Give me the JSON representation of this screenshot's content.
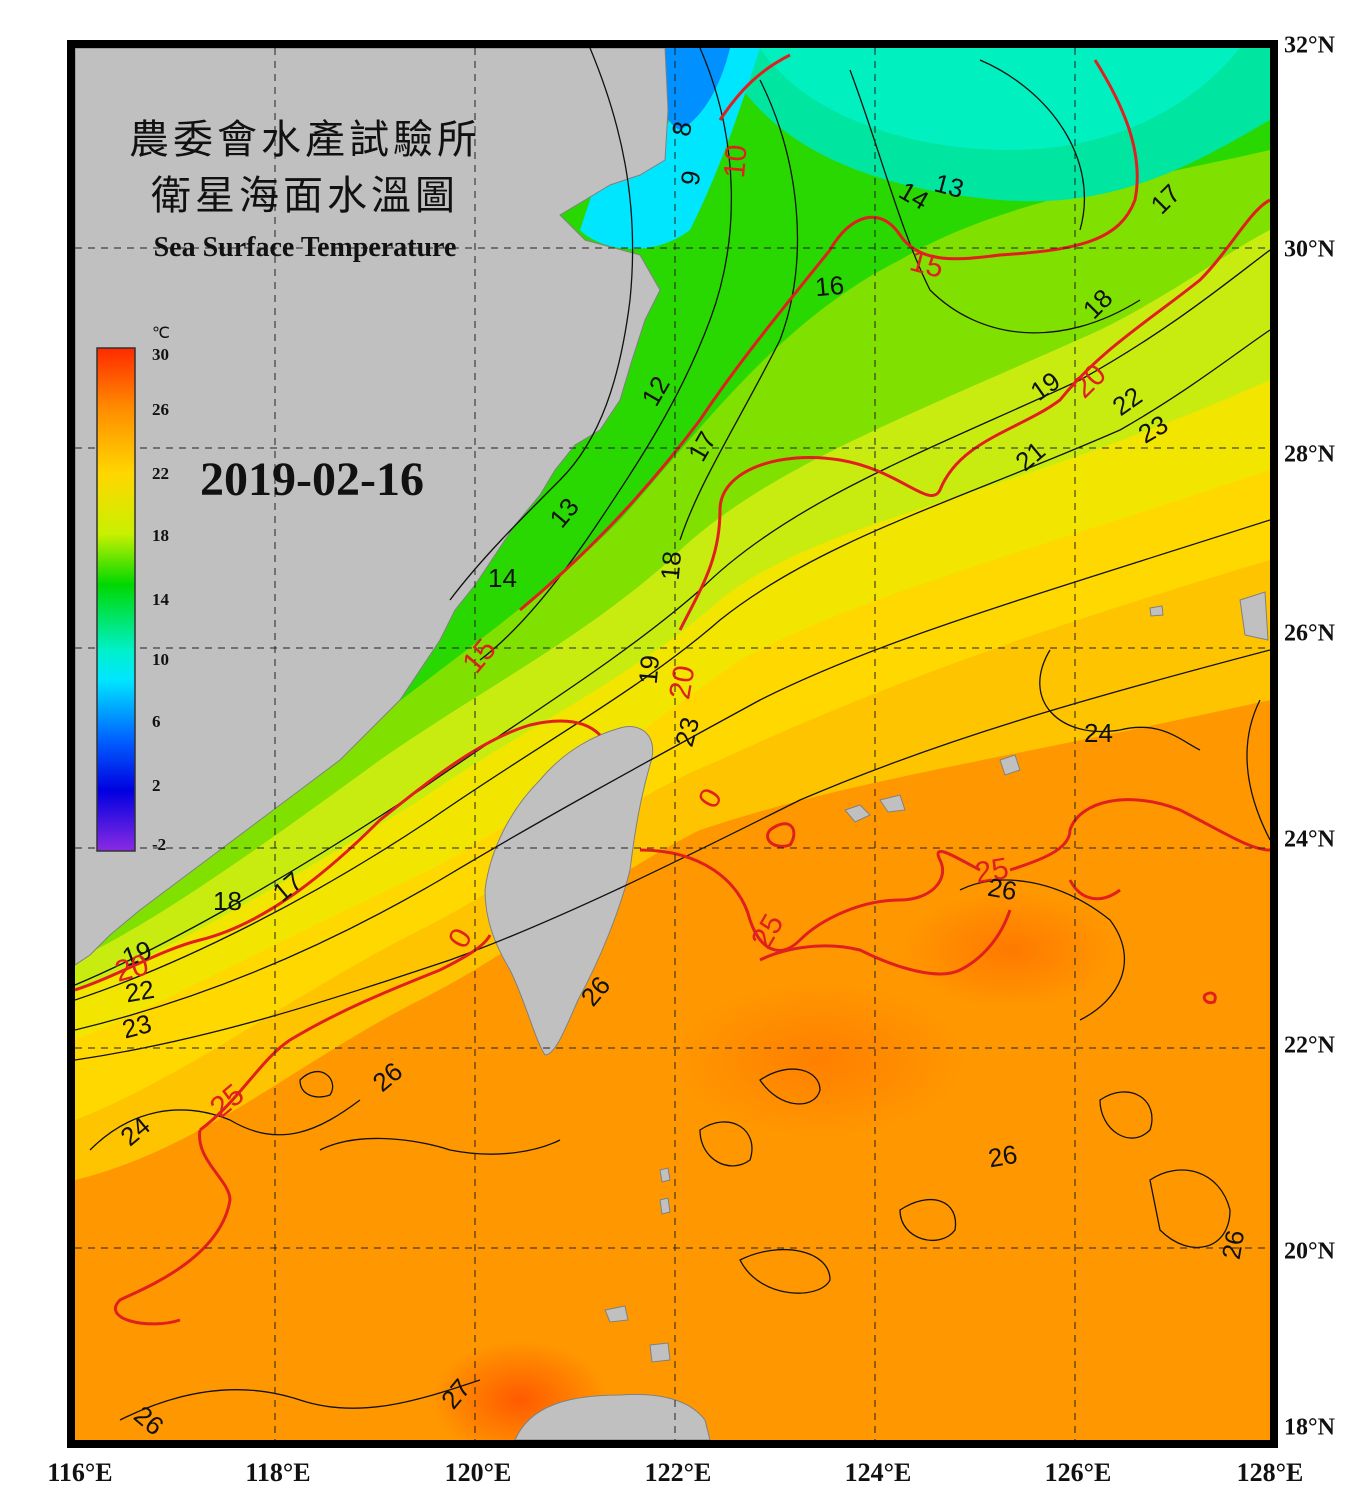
{
  "title_cn_line1": "農委會水產試驗所",
  "title_cn_line2": "衛星海面水溫圖",
  "title_en": "Sea Surface Temperature",
  "date": "2019-02-16",
  "colorbar": {
    "unit": "℃",
    "ticks": [
      "30",
      "26",
      "22",
      "18",
      "14",
      "10",
      "6",
      "2",
      "-2"
    ],
    "colors": [
      "#ff2a00",
      "#ff8c00",
      "#ffd700",
      "#c8f000",
      "#00d800",
      "#00f0c8",
      "#00e6ff",
      "#0060ff",
      "#0000e0",
      "#8a2be2"
    ]
  },
  "map": {
    "lon_labels": [
      "116°E",
      "118°E",
      "120°E",
      "122°E",
      "124°E",
      "126°E",
      "128°E"
    ],
    "lat_labels": [
      "32°N",
      "30°N",
      "28°N",
      "26°N",
      "24°N",
      "22°N",
      "20°N",
      "18°N"
    ],
    "land_color": "#c0c0c0",
    "isotherm_major_color": "#e02020",
    "isotherm_minor_color": "#111111",
    "contour_labels_black": [
      "8",
      "9",
      "12",
      "13",
      "13",
      "14",
      "14",
      "16",
      "17",
      "17",
      "17",
      "18",
      "18",
      "18",
      "19",
      "19",
      "19",
      "21",
      "22",
      "22",
      "23",
      "23",
      "23",
      "24",
      "24",
      "26",
      "26",
      "26",
      "26",
      "26",
      "26",
      "27"
    ],
    "contour_labels_red": [
      "10",
      "15",
      "15",
      "20",
      "20",
      "20",
      "25",
      "25",
      "25",
      "0",
      "0"
    ]
  }
}
